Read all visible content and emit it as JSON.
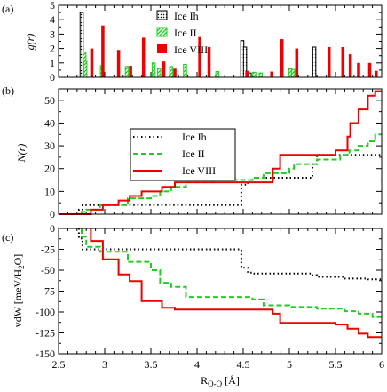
{
  "chart_data": [
    {
      "panel_label": "(a)",
      "type": "bar",
      "ylabel": "g(r)",
      "xlim": [
        2.5,
        6.0
      ],
      "ylim": [
        0,
        5
      ],
      "yticks": [
        0,
        1,
        2,
        3,
        4,
        5
      ],
      "legend": {
        "placement": "top-center"
      },
      "series": [
        {
          "name": "Ice Ih",
          "fill": "dotted-outline",
          "color": "#000000",
          "x": [
            2.75,
            4.49,
            4.52,
            4.57,
            5.27
          ],
          "values": [
            4.5,
            2.55,
            2.1,
            0.3,
            2.1
          ]
        },
        {
          "name": "Ice II",
          "fill": "hatched",
          "color": "#22cc22",
          "x": [
            2.78,
            2.79,
            2.97,
            3.24,
            3.53,
            3.59,
            3.72,
            3.87,
            4.22,
            4.62,
            4.69,
            5.01,
            5.04
          ],
          "values": [
            1.75,
            1.1,
            0.8,
            0.75,
            1.0,
            0.6,
            0.75,
            0.9,
            0.4,
            0.35,
            0.3,
            0.6,
            0.55
          ]
        },
        {
          "name": "Ice VIII",
          "fill": "solid",
          "color": "#ee0000",
          "x": [
            2.86,
            2.98,
            3.15,
            3.28,
            3.42,
            3.64,
            3.76,
            4.03,
            4.13,
            4.54,
            4.81,
            4.92,
            5.08,
            5.43,
            5.58,
            5.66,
            5.75,
            5.87,
            5.94
          ],
          "values": [
            2.0,
            3.6,
            1.9,
            0.8,
            2.75,
            1.1,
            0.6,
            2.8,
            2.1,
            0.45,
            0.4,
            2.65,
            2.0,
            2.1,
            2.1,
            1.6,
            1.0,
            1.0,
            0.45
          ]
        }
      ]
    },
    {
      "panel_label": "(b)",
      "type": "line",
      "ylabel": "N(r)",
      "xlim": [
        2.5,
        6.0
      ],
      "ylim": [
        0,
        55
      ],
      "yticks": [
        0,
        10,
        20,
        30,
        40,
        50
      ],
      "legend": {
        "placement": "top-center"
      },
      "series": [
        {
          "name": "Ice Ih",
          "style": "dotted",
          "color": "#000000",
          "x": [
            2.5,
            2.72,
            2.72,
            2.76,
            2.76,
            4.48,
            4.48,
            4.55,
            4.55,
            4.6,
            4.6,
            5.25,
            5.25,
            5.3,
            5.3,
            6.0
          ],
          "y": [
            0,
            0,
            2,
            2,
            4,
            4,
            13,
            13,
            15,
            15,
            16,
            16,
            22,
            22,
            26,
            26
          ]
        },
        {
          "name": "Ice II",
          "style": "dashed",
          "color": "#22cc22",
          "x": [
            2.5,
            2.75,
            2.75,
            2.8,
            2.8,
            2.95,
            2.95,
            3.25,
            3.25,
            3.5,
            3.5,
            3.6,
            3.6,
            3.72,
            3.72,
            3.88,
            3.88,
            4.2,
            4.2,
            4.6,
            4.6,
            4.72,
            4.72,
            5.0,
            5.0,
            5.05,
            5.05,
            5.3,
            5.3,
            5.55,
            5.55,
            5.65,
            5.65,
            5.75,
            5.75,
            5.85,
            5.85,
            5.93,
            5.93,
            6.0
          ],
          "y": [
            0,
            0,
            1,
            1,
            2,
            2,
            4,
            4,
            7,
            7,
            8,
            8,
            10,
            10,
            12,
            12,
            14,
            14,
            15,
            15,
            16,
            16,
            18,
            18,
            20,
            20,
            22,
            22,
            24,
            24,
            26,
            26,
            28,
            28,
            30,
            30,
            32,
            32,
            35,
            35
          ]
        },
        {
          "name": "Ice VIII",
          "style": "solid",
          "color": "#ee0000",
          "x": [
            2.5,
            2.85,
            2.85,
            2.98,
            2.98,
            3.15,
            3.15,
            3.27,
            3.27,
            3.4,
            3.4,
            3.62,
            3.62,
            3.76,
            3.76,
            4.82,
            4.82,
            4.9,
            4.9,
            5.5,
            5.5,
            5.63,
            5.63,
            5.66,
            5.66,
            5.75,
            5.75,
            5.85,
            5.85,
            5.93,
            5.93,
            6.0
          ],
          "y": [
            0,
            0,
            2,
            2,
            4,
            4,
            6,
            6,
            8,
            8,
            10,
            10,
            12,
            12,
            14,
            14,
            20,
            20,
            26,
            26,
            28,
            28,
            34,
            34,
            40,
            40,
            46,
            46,
            52,
            52,
            54,
            54
          ]
        }
      ]
    },
    {
      "panel_label": "(c)",
      "type": "line",
      "ylabel": "vdW [meV/H2O]",
      "ylabel_parts": {
        "main": "vdW [meV/H",
        "sub": "2",
        "tail": "O]"
      },
      "xlabel": "R O-O [Å]",
      "xlabel_parts": {
        "main": "R",
        "sub": "O-O",
        "tail": " [Å]"
      },
      "xlim": [
        2.5,
        6.0
      ],
      "ylim": [
        -150,
        0
      ],
      "xticks": [
        2.5,
        3,
        3.5,
        4,
        4.5,
        5,
        5.5,
        6
      ],
      "xtick_labels": [
        "2.5",
        "3",
        "3.5",
        "4",
        "4.5",
        "5",
        "5.5",
        "6"
      ],
      "yticks": [
        0,
        -25,
        -50,
        -75,
        -100,
        -125,
        -150
      ],
      "series": [
        {
          "name": "Ice Ih",
          "style": "dotted",
          "color": "#000000",
          "x": [
            2.72,
            2.72,
            2.76,
            2.76,
            4.48,
            4.48,
            4.55,
            4.55,
            4.6,
            4.6,
            5.25,
            5.25,
            5.3,
            5.3,
            5.6,
            5.6,
            5.85,
            5.85,
            6.0
          ],
          "y": [
            0,
            -12,
            -12,
            -25,
            -25,
            -47,
            -47,
            -53,
            -53,
            -54,
            -54,
            -56,
            -56,
            -58,
            -58,
            -60,
            -60,
            -61,
            -61
          ]
        },
        {
          "name": "Ice II",
          "style": "dashed",
          "color": "#22cc22",
          "x": [
            2.75,
            2.75,
            2.8,
            2.8,
            2.95,
            2.95,
            3.25,
            3.25,
            3.5,
            3.5,
            3.6,
            3.6,
            3.72,
            3.72,
            3.88,
            3.88,
            4.6,
            4.6,
            4.72,
            4.72,
            5.0,
            5.0,
            5.3,
            5.3,
            5.6,
            5.6,
            5.75,
            5.75,
            5.9,
            5.9,
            6.0
          ],
          "y": [
            0,
            -10,
            -10,
            -22,
            -22,
            -28,
            -28,
            -40,
            -40,
            -50,
            -50,
            -65,
            -65,
            -70,
            -70,
            -82,
            -82,
            -85,
            -85,
            -92,
            -92,
            -94,
            -94,
            -96,
            -96,
            -99,
            -99,
            -102,
            -102,
            -106,
            -106
          ]
        },
        {
          "name": "Ice VIII",
          "style": "solid",
          "color": "#ee0000",
          "x": [
            2.85,
            2.85,
            2.98,
            2.98,
            3.15,
            3.15,
            3.27,
            3.27,
            3.4,
            3.4,
            3.62,
            3.62,
            3.76,
            3.76,
            4.82,
            4.82,
            4.9,
            4.9,
            5.5,
            5.5,
            5.63,
            5.63,
            5.75,
            5.75,
            5.85,
            5.85,
            6.0
          ],
          "y": [
            0,
            -15,
            -15,
            -37,
            -37,
            -55,
            -55,
            -63,
            -63,
            -87,
            -87,
            -95,
            -95,
            -97,
            -97,
            -102,
            -102,
            -113,
            -113,
            -115,
            -115,
            -120,
            -120,
            -126,
            -126,
            -130,
            -130
          ]
        }
      ]
    }
  ]
}
